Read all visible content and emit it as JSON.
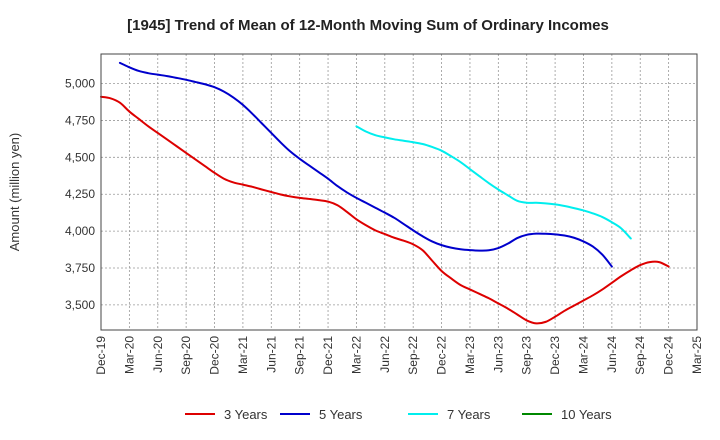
{
  "chart_data": {
    "type": "line",
    "title": "[1945]  Trend of Mean of 12-Month Moving Sum of Ordinary Incomes",
    "xlabel": "",
    "ylabel": "Amount (million yen)",
    "ylim": [
      3330,
      5200
    ],
    "yticks": [
      3500,
      3750,
      4000,
      4250,
      4500,
      4750,
      5000
    ],
    "ytick_labels": [
      "3,500",
      "3,750",
      "4,000",
      "4,250",
      "4,500",
      "4,750",
      "5,000"
    ],
    "x_months": [
      "Dec-19",
      "Jan-20",
      "Feb-20",
      "Mar-20",
      "Apr-20",
      "May-20",
      "Jun-20",
      "Jul-20",
      "Aug-20",
      "Sep-20",
      "Oct-20",
      "Nov-20",
      "Dec-20",
      "Jan-21",
      "Feb-21",
      "Mar-21",
      "Apr-21",
      "May-21",
      "Jun-21",
      "Jul-21",
      "Aug-21",
      "Sep-21",
      "Oct-21",
      "Nov-21",
      "Dec-21",
      "Jan-22",
      "Feb-22",
      "Mar-22",
      "Apr-22",
      "May-22",
      "Jun-22",
      "Jul-22",
      "Aug-22",
      "Sep-22",
      "Oct-22",
      "Nov-22",
      "Dec-22",
      "Jan-23",
      "Feb-23",
      "Mar-23",
      "Apr-23",
      "May-23",
      "Jun-23",
      "Jul-23",
      "Aug-23",
      "Sep-23",
      "Oct-23",
      "Nov-23",
      "Dec-23",
      "Jan-24",
      "Feb-24",
      "Mar-24",
      "Apr-24",
      "May-24",
      "Jun-24",
      "Jul-24",
      "Aug-24",
      "Sep-24",
      "Oct-24",
      "Nov-24",
      "Dec-24",
      "Jan-25",
      "Feb-25",
      "Mar-25"
    ],
    "xtick_labels": [
      "Dec-19",
      "Mar-20",
      "Jun-20",
      "Sep-20",
      "Dec-20",
      "Mar-21",
      "Jun-21",
      "Sep-21",
      "Dec-21",
      "Mar-22",
      "Jun-22",
      "Sep-22",
      "Dec-22",
      "Mar-23",
      "Jun-23",
      "Sep-23",
      "Dec-23",
      "Mar-24",
      "Jun-24",
      "Sep-24",
      "Dec-24",
      "Mar-25"
    ],
    "grid": true,
    "legend_position": "bottom",
    "series": [
      {
        "name": "3 Years",
        "color": "#dd0000",
        "start_index": 0,
        "values": [
          4910,
          4900,
          4870,
          4810,
          4760,
          4710,
          4665,
          4620,
          4575,
          4530,
          4485,
          4440,
          4395,
          4355,
          4330,
          4315,
          4300,
          4282,
          4265,
          4248,
          4235,
          4225,
          4218,
          4210,
          4200,
          4175,
          4130,
          4080,
          4040,
          4005,
          3980,
          3955,
          3935,
          3910,
          3870,
          3800,
          3730,
          3680,
          3635,
          3605,
          3575,
          3545,
          3510,
          3475,
          3435,
          3395,
          3375,
          3385,
          3420,
          3460,
          3495,
          3530,
          3565,
          3605,
          3650,
          3695,
          3735,
          3770,
          3790,
          3790,
          3760
        ]
      },
      {
        "name": "5 Years",
        "color": "#0000cc",
        "start_index": 2,
        "values": [
          5140,
          5110,
          5085,
          5070,
          5060,
          5050,
          5038,
          5025,
          5010,
          4995,
          4975,
          4945,
          4905,
          4855,
          4795,
          4730,
          4665,
          4600,
          4540,
          4490,
          4445,
          4400,
          4355,
          4305,
          4262,
          4225,
          4192,
          4158,
          4125,
          4090,
          4048,
          4005,
          3965,
          3930,
          3905,
          3888,
          3877,
          3871,
          3868,
          3870,
          3885,
          3915,
          3953,
          3975,
          3983,
          3982,
          3978,
          3970,
          3955,
          3930,
          3895,
          3840,
          3760
        ]
      },
      {
        "name": "7 Years",
        "color": "#00eeee",
        "start_index": 27,
        "values": [
          4710,
          4675,
          4650,
          4635,
          4622,
          4612,
          4602,
          4590,
          4570,
          4545,
          4508,
          4468,
          4420,
          4372,
          4325,
          4282,
          4243,
          4205,
          4192,
          4192,
          4188,
          4181,
          4170,
          4156,
          4140,
          4120,
          4095,
          4060,
          4018,
          3950
        ]
      },
      {
        "name": "10 Years",
        "color": "#008800",
        "start_index": 0,
        "values": []
      }
    ]
  }
}
